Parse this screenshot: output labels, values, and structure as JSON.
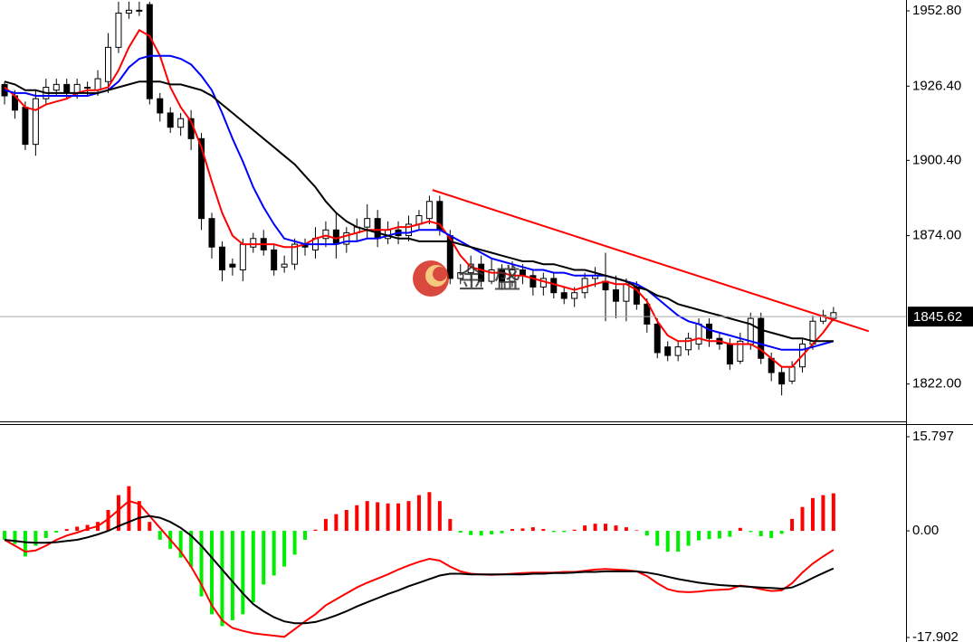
{
  "chart_data": [
    {
      "type": "candlestick",
      "xlim": [
        -0.44,
        87
      ],
      "ylim": [
        1808.9,
        1956.6
      ],
      "yticks": [
        {
          "value": 1952.8,
          "label": "1952.80"
        },
        {
          "value": 1926.4,
          "label": "1926.40"
        },
        {
          "value": 1900.4,
          "label": "1900.40"
        },
        {
          "value": 1874,
          "label": "1874.00"
        },
        {
          "value": 1822,
          "label": "1822.00"
        }
      ],
      "up_color": "#ffffff",
      "down_color": "#000000",
      "open": [
        1927,
        1923,
        1919,
        1906,
        1922,
        1925,
        1927,
        1924,
        1926,
        1925,
        1928,
        1940,
        1952,
        1953,
        1955,
        1922,
        1917,
        1912,
        1915,
        1908,
        1880,
        1870,
        1864,
        1862,
        1870,
        1873,
        1869,
        1863,
        1864,
        1871,
        1869,
        1873,
        1876,
        1871,
        1875,
        1877,
        1880,
        1873,
        1876,
        1874,
        1878,
        1880,
        1886,
        1874,
        1859,
        1861,
        1864,
        1858,
        1862,
        1858,
        1862,
        1860,
        1856,
        1859,
        1854,
        1852,
        1854,
        1859,
        1858,
        1855,
        1851,
        1856,
        1850,
        1843,
        1835,
        1832,
        1834,
        1836,
        1843,
        1838,
        1836,
        1830,
        1836,
        1845,
        1831,
        1826,
        1823,
        1828,
        1836,
        1844,
        1845
      ],
      "high": [
        1928,
        1925,
        1921,
        1925,
        1929,
        1929,
        1929,
        1929,
        1928,
        1932,
        1945,
        1956,
        1956,
        1956,
        1956,
        1924,
        1919,
        1917,
        1918,
        1910,
        1882,
        1872,
        1866,
        1873,
        1875,
        1876,
        1871,
        1867,
        1873,
        1873,
        1877,
        1879,
        1882,
        1877,
        1880,
        1885,
        1883,
        1879,
        1879,
        1881,
        1883,
        1888,
        1888,
        1876,
        1864,
        1867,
        1867,
        1866,
        1864,
        1865,
        1864,
        1862,
        1861,
        1861,
        1856,
        1856,
        1861,
        1863,
        1868,
        1860,
        1859,
        1858,
        1852,
        1845,
        1837,
        1837,
        1840,
        1845,
        1845,
        1840,
        1838,
        1840,
        1847,
        1847,
        1833,
        1828,
        1830,
        1838,
        1846,
        1848,
        1849
      ],
      "low": [
        1920,
        1915,
        1904,
        1902,
        1920,
        1923,
        1922,
        1922,
        1923,
        1923,
        1924,
        1938,
        1950,
        1951,
        1920,
        1914,
        1910,
        1909,
        1904,
        1876,
        1866,
        1858,
        1860,
        1858,
        1868,
        1867,
        1860,
        1861,
        1862,
        1867,
        1866,
        1870,
        1866,
        1868,
        1872,
        1873,
        1870,
        1871,
        1871,
        1872,
        1876,
        1878,
        1874,
        1857,
        1857,
        1858,
        1856,
        1857,
        1855,
        1856,
        1857,
        1853,
        1853,
        1852,
        1850,
        1849,
        1852,
        1856,
        1844,
        1845,
        1844,
        1848,
        1840,
        1831,
        1830,
        1830,
        1832,
        1834,
        1835,
        1834,
        1827,
        1829,
        1834,
        1829,
        1823,
        1818,
        1822,
        1826,
        1834,
        1843,
        1844
      ],
      "close": [
        1923,
        1918,
        1906,
        1922,
        1926,
        1927,
        1924,
        1927,
        1926,
        1929,
        1940,
        1952,
        1953,
        1953,
        1922,
        1917,
        1912,
        1915,
        1908,
        1880,
        1870,
        1862,
        1863,
        1871,
        1873,
        1869,
        1862,
        1864,
        1871,
        1870,
        1873,
        1876,
        1871,
        1875,
        1877,
        1880,
        1873,
        1876,
        1874,
        1878,
        1881,
        1886,
        1876,
        1859,
        1861,
        1864,
        1858,
        1862,
        1858,
        1862,
        1860,
        1856,
        1859,
        1854,
        1852,
        1854,
        1859,
        1860,
        1855,
        1851,
        1857,
        1850,
        1843,
        1833,
        1832,
        1835,
        1838,
        1843,
        1838,
        1836,
        1829,
        1837,
        1845,
        1831,
        1826,
        1822,
        1828,
        1836,
        1844,
        1846,
        1847
      ],
      "series": [
        {
          "color": "#ff0000",
          "values": [
            1926,
            1923,
            1919,
            1918,
            1920,
            1921,
            1922,
            1924,
            1925,
            1925,
            1926,
            1932,
            1940,
            1946,
            1944,
            1937,
            1926,
            1919,
            1914,
            1905,
            1893,
            1882,
            1874,
            1871,
            1871,
            1871,
            1871,
            1870,
            1870,
            1871,
            1873,
            1874,
            1873,
            1874,
            1875,
            1876,
            1876,
            1876,
            1877,
            1877,
            1878,
            1879,
            1878,
            1873,
            1867,
            1863,
            1862,
            1861,
            1861,
            1860,
            1860,
            1859,
            1858,
            1857,
            1856,
            1855,
            1856,
            1857,
            1858,
            1857,
            1857,
            1855,
            1851,
            1844,
            1839,
            1837,
            1837,
            1838,
            1837,
            1837,
            1836,
            1836,
            1836,
            1834,
            1831,
            1828,
            1828,
            1832,
            1836,
            1840,
            1845
          ]
        },
        {
          "color": "#0000ff",
          "values": [
            1925,
            1924,
            1924,
            1923,
            1923,
            1923,
            1923,
            1923,
            1923,
            1924,
            1925,
            1928,
            1933,
            1936,
            1937,
            1937,
            1937,
            1936,
            1934,
            1930,
            1925,
            1917,
            1908,
            1900,
            1891,
            1884,
            1878,
            1873,
            1872,
            1871,
            1871,
            1871,
            1871,
            1872,
            1872,
            1873,
            1873,
            1874,
            1875,
            1875,
            1876,
            1876,
            1876,
            1874,
            1872,
            1870,
            1868,
            1866,
            1865,
            1864,
            1863,
            1862,
            1862,
            1861,
            1861,
            1860,
            1860,
            1860,
            1860,
            1859,
            1858,
            1857,
            1855,
            1852,
            1849,
            1846,
            1844,
            1843,
            1841,
            1840,
            1839,
            1838,
            1837,
            1836,
            1835,
            1834,
            1834,
            1834,
            1835,
            1836,
            1837
          ]
        },
        {
          "color": "#000000",
          "values": [
            1928,
            1927,
            1925,
            1925,
            1924,
            1924,
            1924,
            1924,
            1924,
            1924,
            1925,
            1926,
            1927,
            1928,
            1928,
            1928,
            1927,
            1927,
            1926,
            1925,
            1923,
            1920,
            1917,
            1914,
            1911,
            1908,
            1905,
            1902,
            1899,
            1895,
            1891,
            1886,
            1882,
            1879,
            1877,
            1876,
            1875,
            1874,
            1873,
            1873,
            1872,
            1872,
            1872,
            1872,
            1871,
            1870,
            1869,
            1868,
            1867,
            1866,
            1865,
            1865,
            1864,
            1864,
            1863,
            1862,
            1862,
            1861,
            1860,
            1859,
            1858,
            1856,
            1855,
            1853,
            1852,
            1850,
            1849,
            1848,
            1847,
            1846,
            1845,
            1844,
            1843,
            1841,
            1840,
            1839,
            1838,
            1838,
            1837,
            1837,
            1837
          ]
        }
      ],
      "trendline": {
        "color": "#ff0000",
        "x": [
          41.3,
          83.4
        ],
        "values": [
          1890,
          1840.5
        ]
      },
      "current_price": 1845.62,
      "watermark": "金 盛"
    },
    {
      "type": "macd",
      "xlim": [
        -0.44,
        87
      ],
      "ylim": [
        -18.66,
        17.77
      ],
      "yticks": [
        15.797,
        {
          "value": 0,
          "label": "0.00"
        },
        -17.902
      ],
      "positive_color": "#ff0000",
      "negative_color": "#00ee00",
      "histogram": [
        -1.5,
        -2.2,
        -4.3,
        -2.5,
        -1.2,
        -0.3,
        0.3,
        0.7,
        1.0,
        1.5,
        3.5,
        6,
        7.5,
        5,
        1.5,
        -1.5,
        -3,
        -4.5,
        -6,
        -11,
        -14,
        -16,
        -15,
        -14,
        -12,
        -9,
        -7.5,
        -6,
        -4,
        -1.5,
        0.2,
        2.0,
        2.8,
        3.5,
        4.3,
        5.0,
        4.8,
        4.6,
        4.6,
        5.0,
        6.0,
        6.5,
        5.0,
        2.0,
        -0.3,
        -0.7,
        -0.8,
        -0.6,
        -0.4,
        0.3,
        0.4,
        0.6,
        0.3,
        -0.2,
        -0.2,
        0.2,
        0.9,
        1.2,
        1.2,
        0.9,
        0.6,
        0.1,
        -0.8,
        -2.5,
        -3.5,
        -3.5,
        -2.5,
        -1.6,
        -1.4,
        -1.3,
        -1.0,
        0.5,
        -0.2,
        -0.9,
        -1.2,
        -0.5,
        2.0,
        4.0,
        5.5,
        6.0,
        6.3
      ],
      "series": [
        {
          "color": "#ff0000",
          "values": [
            -1.5,
            -2.5,
            -3.5,
            -3.3,
            -2.5,
            -1.5,
            -0.8,
            -0.3,
            0.3,
            0.8,
            2,
            3.5,
            5,
            4.5,
            2.5,
            0.5,
            -1.5,
            -3.5,
            -6,
            -9,
            -12.5,
            -15,
            -16.3,
            -16.8,
            -17.2,
            -17.4,
            -17.6,
            -17.8,
            -16.5,
            -15.2,
            -14,
            -12.5,
            -11.5,
            -10.5,
            -9.5,
            -8.7,
            -8,
            -7.3,
            -6.5,
            -5.8,
            -5.2,
            -4.7,
            -5,
            -6,
            -6.8,
            -7.2,
            -7.3,
            -7.4,
            -7.3,
            -7.2,
            -7.1,
            -7,
            -7,
            -7,
            -6.9,
            -6.9,
            -6.7,
            -6.5,
            -6.4,
            -6.5,
            -6.6,
            -6.8,
            -7.6,
            -8.8,
            -9.8,
            -10.2,
            -10.3,
            -10.2,
            -10,
            -9.9,
            -9.8,
            -9.2,
            -9.4,
            -9.8,
            -10.1,
            -10,
            -8.8,
            -7,
            -5.5,
            -4.3,
            -3.2
          ]
        },
        {
          "color": "#000000",
          "values": [
            -1.5,
            -1.7,
            -1.9,
            -2,
            -2,
            -1.9,
            -1.7,
            -1.5,
            -1.1,
            -0.6,
            0,
            0.8,
            1.5,
            2.2,
            2.5,
            2.2,
            1.5,
            0.5,
            -0.8,
            -2.5,
            -4.5,
            -6.5,
            -8.5,
            -10.5,
            -12.3,
            -13.5,
            -14.5,
            -15.2,
            -15.5,
            -15.5,
            -15.3,
            -14.8,
            -14.2,
            -13.5,
            -12.7,
            -12,
            -11.3,
            -10.6,
            -10,
            -9.3,
            -8.7,
            -8.1,
            -7.5,
            -7.2,
            -7.2,
            -7.3,
            -7.3,
            -7.3,
            -7.3,
            -7.3,
            -7.3,
            -7.2,
            -7.2,
            -7.1,
            -7.1,
            -7,
            -6.9,
            -6.9,
            -6.8,
            -6.8,
            -6.8,
            -6.8,
            -7,
            -7.3,
            -7.7,
            -8.1,
            -8.4,
            -8.7,
            -8.9,
            -9.1,
            -9.2,
            -9.3,
            -9.4,
            -9.5,
            -9.6,
            -9.7,
            -9.5,
            -8.8,
            -7.9,
            -7.1,
            -6.3
          ]
        }
      ]
    }
  ]
}
